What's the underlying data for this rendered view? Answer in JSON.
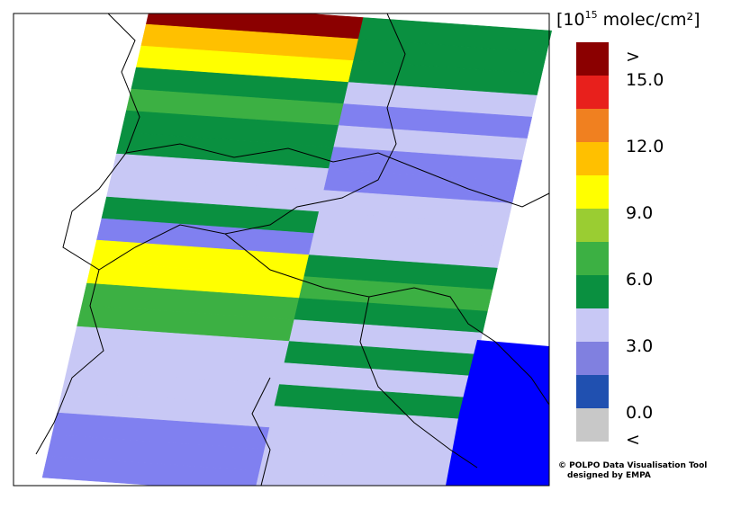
{
  "legend": {
    "title": {
      "prefix": "[10",
      "exponent": "15",
      "unit": " molec/cm²]"
    },
    "colors": [
      "#8b0000",
      "#e8201c",
      "#f08020",
      "#ffc000",
      "#ffff00",
      "#9acd32",
      "#3cb043",
      "#0a9040",
      "#c8c8f5",
      "#8080e0",
      "#2050b0",
      "#c8c8c8"
    ],
    "labels": [
      ">",
      "15.0",
      "12.0",
      "9.0",
      "6.0",
      "3.0",
      "0.0",
      "<"
    ]
  },
  "credit": [
    "© POLPO Data Visualisation Tool",
    "designed by EMPA"
  ]
}
